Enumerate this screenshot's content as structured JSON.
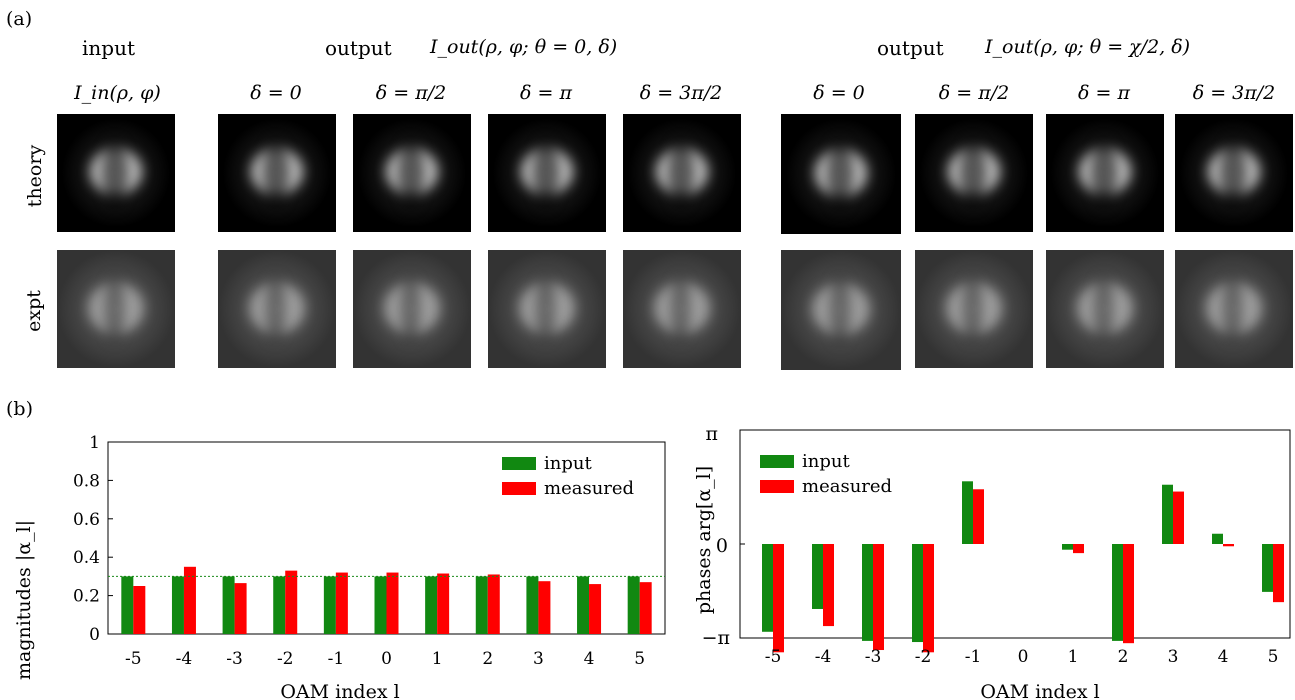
{
  "panel_a_label": "(a)",
  "panel_b_label": "(b)",
  "headers": {
    "input": "input",
    "input_eq": "I_in(ρ, φ)",
    "output1": "output",
    "output1_eq": "I_out(ρ, φ; θ = 0, δ)",
    "output2": "output",
    "output2_eq": "I_out(ρ, φ; θ = χ/2, δ)"
  },
  "delta_labels": [
    "δ = 0",
    "δ = π/2",
    "δ = π",
    "δ = 3π/2",
    "δ = 0",
    "δ = π/2",
    "δ = π",
    "δ = 3π/2"
  ],
  "row_labels": {
    "theory": "theory",
    "expt": "expt"
  },
  "chart_data": [
    {
      "type": "bar",
      "categories": [
        "-5",
        "-4",
        "-3",
        "-2",
        "-1",
        "0",
        "1",
        "2",
        "3",
        "4",
        "5"
      ],
      "series": [
        {
          "name": "input",
          "color": "#118811",
          "values": [
            0.3,
            0.3,
            0.3,
            0.3,
            0.3,
            0.3,
            0.3,
            0.3,
            0.3,
            0.3,
            0.3
          ]
        },
        {
          "name": "measured",
          "color": "#ff0000",
          "values": [
            0.25,
            0.35,
            0.265,
            0.33,
            0.32,
            0.32,
            0.315,
            0.31,
            0.275,
            0.26,
            0.27
          ]
        }
      ],
      "xlabel": "OAM index l",
      "ylabel": "magnitudes |α_l|",
      "ylim": [
        0,
        1
      ],
      "yticks": [
        "0",
        "0.2",
        "0.4",
        "0.6",
        "0.8",
        "1"
      ],
      "reference_line": 0.3,
      "legend": "top-right"
    },
    {
      "type": "bar",
      "categories": [
        "-5",
        "-4",
        "-3",
        "-2",
        "-1",
        "0",
        "1",
        "2",
        "3",
        "4",
        "5"
      ],
      "series": [
        {
          "name": "input",
          "color": "#118811",
          "values": [
            -0.77,
            -0.57,
            -0.85,
            -0.86,
            0.55,
            0.0,
            -0.05,
            -0.85,
            0.52,
            0.09,
            -0.42
          ]
        },
        {
          "name": "measured",
          "color": "#ff0000",
          "values": [
            -0.95,
            -0.72,
            -0.93,
            -0.95,
            0.48,
            0.0,
            -0.08,
            -0.87,
            0.46,
            -0.02,
            -0.51
          ]
        }
      ],
      "xlabel": "OAM index l",
      "ylabel": "phases arg[α_l]",
      "ylim_label": [
        "−π",
        "0",
        "π"
      ],
      "legend": "top-left"
    }
  ]
}
